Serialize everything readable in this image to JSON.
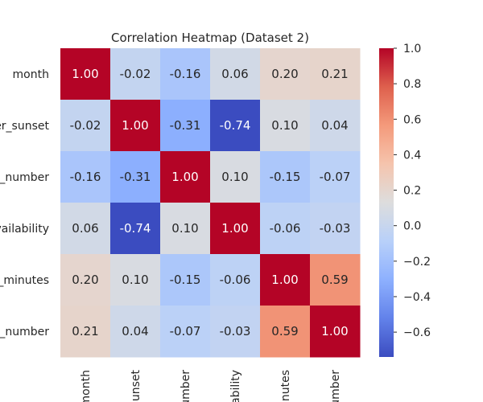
{
  "chart_data": {
    "type": "heatmap",
    "title": "Correlation Heatmap (Dataset 2)",
    "row_labels": [
      "month",
      "er_sunset",
      "_number",
      "vailability",
      "_minutes",
      "_number"
    ],
    "col_labels": [
      "month",
      "sunset",
      "umber",
      "ability",
      "inutes",
      "umber"
    ],
    "values": [
      [
        1.0,
        -0.02,
        -0.16,
        0.06,
        0.2,
        0.21
      ],
      [
        -0.02,
        1.0,
        -0.31,
        -0.74,
        0.1,
        0.04
      ],
      [
        -0.16,
        -0.31,
        1.0,
        0.1,
        -0.15,
        -0.07
      ],
      [
        0.06,
        -0.74,
        0.1,
        1.0,
        -0.06,
        -0.03
      ],
      [
        0.2,
        0.1,
        -0.15,
        -0.06,
        1.0,
        0.59
      ],
      [
        0.21,
        0.04,
        -0.07,
        -0.03,
        0.59,
        1.0
      ]
    ],
    "value_format": "0.00",
    "colormap": "coolwarm",
    "color_range": [
      -0.74,
      1.0
    ],
    "colorbar": {
      "location": "right",
      "ticks": [
        1.0,
        0.8,
        0.6,
        0.4,
        0.2,
        0.0,
        -0.2,
        -0.4,
        -0.6
      ],
      "tick_labels": [
        "1.0",
        "0.8",
        "0.6",
        "0.4",
        "0.2",
        "0.0",
        "−0.2",
        "−0.4",
        "−0.6"
      ]
    },
    "grid": false
  }
}
